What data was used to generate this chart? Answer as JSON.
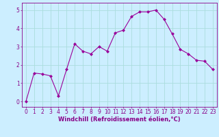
{
  "x": [
    0,
    1,
    2,
    3,
    4,
    5,
    6,
    7,
    8,
    9,
    10,
    11,
    12,
    13,
    14,
    15,
    16,
    17,
    18,
    19,
    20,
    21,
    22,
    23
  ],
  "y": [
    0.0,
    1.55,
    1.5,
    1.4,
    0.3,
    1.75,
    3.15,
    2.75,
    2.6,
    3.0,
    2.75,
    3.75,
    3.9,
    4.65,
    4.9,
    4.9,
    5.0,
    4.5,
    3.7,
    2.85,
    2.6,
    2.25,
    2.2,
    1.75
  ],
  "line_color": "#990099",
  "marker": "D",
  "marker_size": 2.0,
  "bg_color": "#cceeff",
  "grid_color": "#aadddd",
  "xlabel": "Windchill (Refroidissement éolien,°C)",
  "ylim": [
    -0.3,
    5.4
  ],
  "xlim": [
    -0.5,
    23.5
  ],
  "yticks": [
    0,
    1,
    2,
    3,
    4,
    5
  ],
  "xticks": [
    0,
    1,
    2,
    3,
    4,
    5,
    6,
    7,
    8,
    9,
    10,
    11,
    12,
    13,
    14,
    15,
    16,
    17,
    18,
    19,
    20,
    21,
    22,
    23
  ],
  "tick_color": "#880088",
  "axis_color": "#880088",
  "label_color": "#880088",
  "font_size": 5.5,
  "xlabel_font_size": 6.0
}
